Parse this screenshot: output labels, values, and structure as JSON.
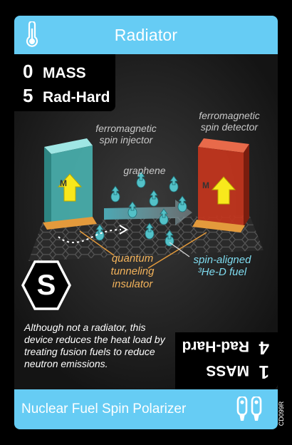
{
  "card": {
    "type": "Radiator",
    "name": "Nuclear Fuel Spin Polarizer",
    "code": "CD099R",
    "type_icon": "thermometer-icon",
    "thruster_icon": "thruster-icon",
    "colors": {
      "band": "#66ccf4",
      "graphene": "#2b2b2b",
      "injector": "#69d4d0",
      "detector": "#d23a20",
      "spin_particle": "#53c1c8",
      "arrow": "#f8e81c",
      "insulator": "#e39a3c"
    }
  },
  "stats_top": {
    "mass_value": "0",
    "mass_label": "MASS",
    "radhard_value": "5",
    "radhard_label": "Rad-Hard"
  },
  "stats_bottom": {
    "mass_value": "1",
    "mass_label": "MASS",
    "radhard_value": "4",
    "radhard_label": "Rad-Hard"
  },
  "illustration": {
    "injector_label": [
      "ferromagnetic",
      "spin injector"
    ],
    "detector_label": [
      "ferromagnetic",
      "spin detector"
    ],
    "graphene_label": "graphene",
    "tunneling_label": [
      "quantum",
      "tunneling",
      "insulator"
    ],
    "fuel_label": [
      "spin-aligned",
      "³He-D fuel"
    ],
    "magnet_label": "M"
  },
  "supply_symbol": "S",
  "flavor_text": "Although not a radiator, this device reduces the heat load by treating fusion fuels to reduce neutron emissions."
}
